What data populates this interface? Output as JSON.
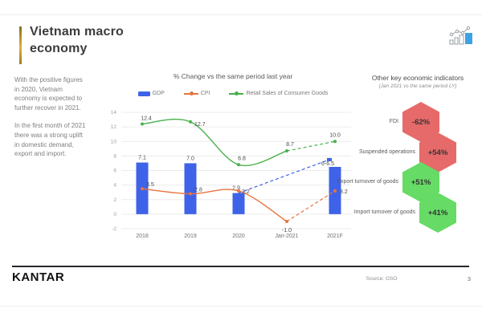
{
  "slide": {
    "title": "Vietnam macro economy",
    "intro": {
      "p1": "With the positive figures in 2020, Vietnam economy is expected to further recover in 2021.",
      "p2": "In the first month of 2021 there was a strong uplift in domestic demand, export and import."
    }
  },
  "chart_data": {
    "type": "combo-bar-line",
    "title": "% Change vs the same period last year",
    "categories": [
      "2018",
      "2019",
      "2020",
      "Jan-2021",
      "2021F"
    ],
    "ylim": [
      -2,
      14
    ],
    "ytick_step": 2,
    "grid": true,
    "legend_position": "top",
    "series": [
      {
        "name": "GDP",
        "type": "bar",
        "color": "#3E63E8",
        "values": [
          7.1,
          7.0,
          2.9,
          null,
          6.5
        ],
        "point_labels": [
          "7.1",
          "7.0",
          "2.9",
          "",
          "6-6.5"
        ]
      },
      {
        "name": "CPI",
        "type": "line",
        "color": "#E8743F",
        "values": [
          3.5,
          2.8,
          3.2,
          -1.0,
          3.2
        ],
        "dashed_from_index": 3,
        "point_labels": [
          "3.5",
          "2.8",
          "3.2",
          "-1.0",
          "3.2"
        ]
      },
      {
        "name": "Retail Sales of Consumer Goods",
        "type": "line",
        "color": "#47B14B",
        "values": [
          12.4,
          12.7,
          6.8,
          8.7,
          10.0
        ],
        "dashed_from_index": 3,
        "point_labels": [
          "12.4",
          "12.7",
          "6.8",
          "8.7",
          "10.0"
        ]
      }
    ],
    "forecast_connector": {
      "series": "GDP",
      "style": "dashed",
      "color": "#3E63E8",
      "from": {
        "category": "2020",
        "value": 2.9
      },
      "to": {
        "category": "2021F",
        "value": 7.5
      }
    }
  },
  "indicators": {
    "title": "Other key economic indicators",
    "subtitle": "(Jan 2021 vs the same period LY)",
    "items": [
      {
        "label": "FDI",
        "value": "-62%",
        "color": "#E66A6A",
        "tone": "negative"
      },
      {
        "label": "Suspended operations",
        "value": "+54%",
        "color": "#E66A6A",
        "tone": "negative"
      },
      {
        "label": "Export turnover of goods",
        "value": "+51%",
        "color": "#66DB66",
        "tone": "positive"
      },
      {
        "label": "Import turnover of goods",
        "value": "+41%",
        "color": "#66DB66",
        "tone": "positive"
      }
    ]
  },
  "footer": {
    "brand": "KANTAR",
    "source": "Source: GSO",
    "page": "3"
  },
  "icons": {
    "top_right": "combo-chart-icon"
  },
  "colors": {
    "accent_gold": "#D9B43C",
    "footer_bar": "#26262E",
    "icon_blue": "#3EA2E5"
  }
}
